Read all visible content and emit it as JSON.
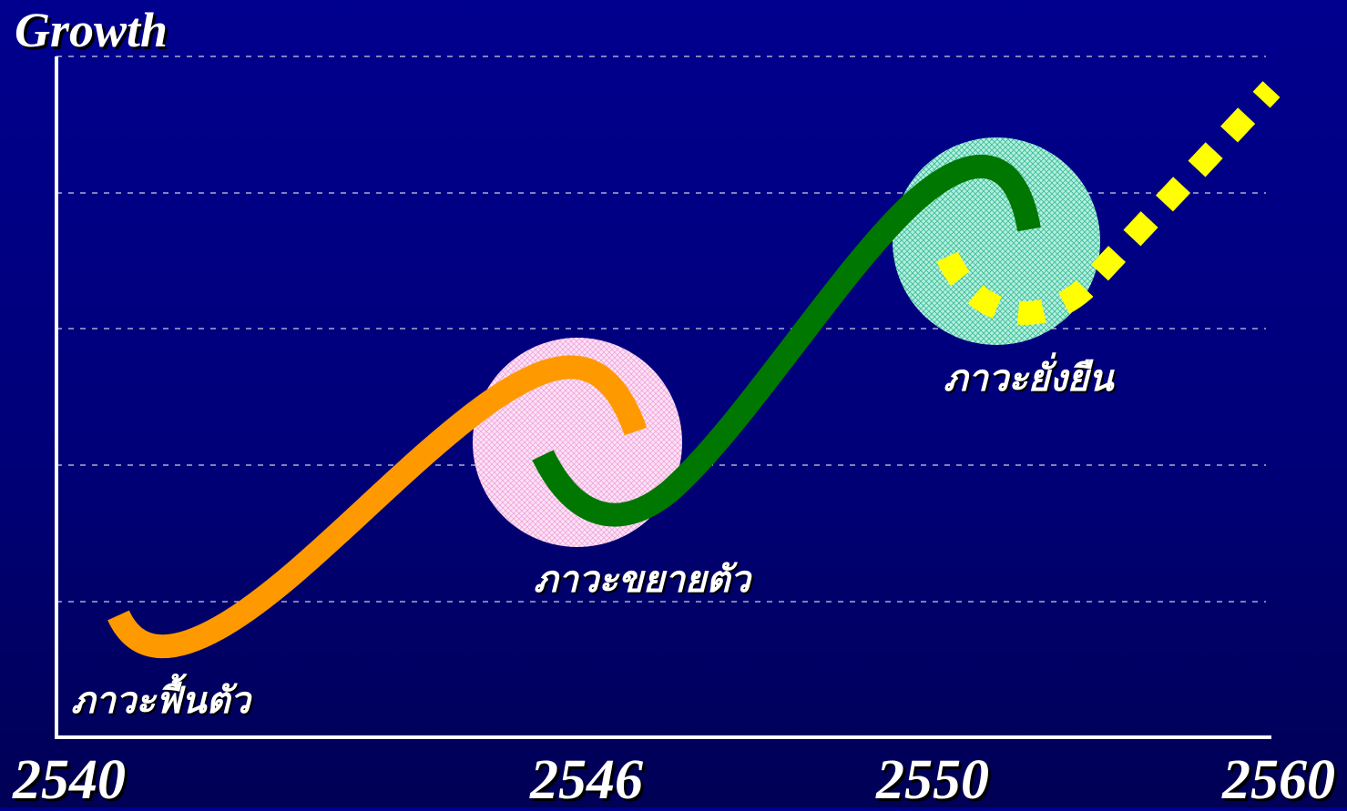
{
  "title": "Growth",
  "x_axis": {
    "ticks": [
      "2540",
      "2546",
      "2550",
      "2560"
    ]
  },
  "phases": [
    {
      "label": "ภาวะฟื้นตัว",
      "color": "#ff9900"
    },
    {
      "label": "ภาวะขยายตัว",
      "color": "#007700"
    },
    {
      "label": "ภาวะยั่งยืน",
      "color": "#ffff00"
    }
  ],
  "colors": {
    "background": "#000080",
    "axis": "#ffffff",
    "grid": "#ffffff",
    "circle_pink": "#ffd6f5",
    "circle_teal": "#7fe0c4"
  }
}
